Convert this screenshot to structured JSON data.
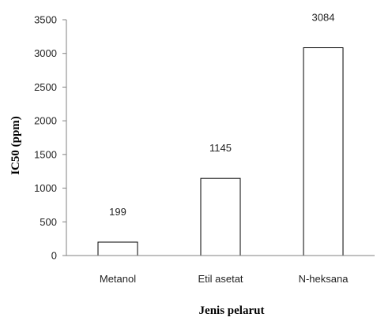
{
  "chart_data": {
    "type": "bar",
    "categories": [
      "Metanol",
      "Etil asetat",
      "N-heksana"
    ],
    "values": [
      199,
      1145,
      3084
    ],
    "data_labels": [
      "199",
      "1145",
      "3084"
    ],
    "xlabel": "Jenis pelarut",
    "ylabel": "IC50 (ppm)",
    "ylim": [
      0,
      3500
    ],
    "yticks": [
      0,
      500,
      1000,
      1500,
      2000,
      2500,
      3000,
      3500
    ],
    "grid": false,
    "legend": "none",
    "bar_fill": "#ffffff",
    "bar_stroke": "#000000"
  }
}
